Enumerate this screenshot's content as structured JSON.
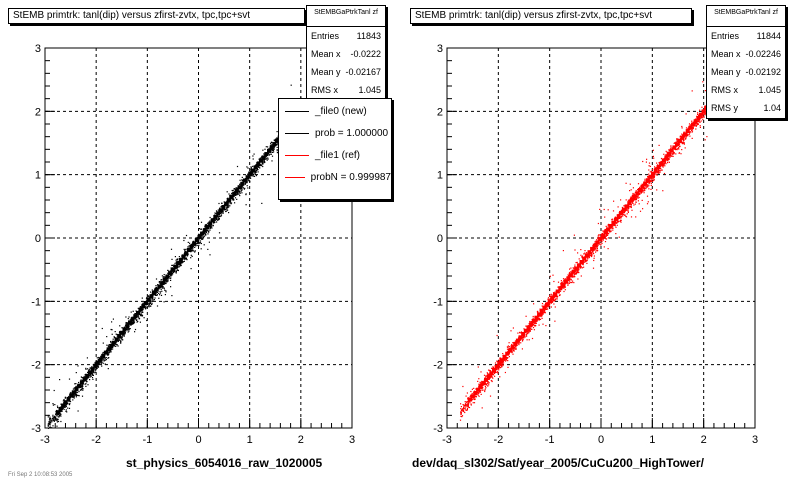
{
  "footnote": "Fri Sep 2 10:08:53 2005",
  "chart_data": [
    {
      "type": "scatter",
      "title": "StEMB primtrk: tanl(dip) versus zfirst-zvtx, tpc,tpc+svt",
      "xlabel": "st_physics_6054016_raw_1020005",
      "ylabel": "",
      "xlim": [
        -3,
        3
      ],
      "ylim": [
        -3,
        3
      ],
      "xticks": [
        "-3",
        "-2",
        "-1",
        "0",
        "1",
        "2",
        "3"
      ],
      "yticks": [
        "-3",
        "-2",
        "-1",
        "0",
        "1",
        "2",
        "3"
      ],
      "grid": true,
      "color": "#000000",
      "relation": {
        "slope": 1.0,
        "intercept": 0.0,
        "x_range": [
          -2.95,
          2.1
        ]
      },
      "stats": {
        "name": "StEMBGaPtrkTanl zf",
        "entries_label": "Entries",
        "entries": "11843",
        "meanx_label": "Mean x",
        "meanx": "-0.0222",
        "meany_label": "Mean y",
        "meany": "-0.02167",
        "rmsx_label": "RMS x",
        "rmsx": "1.045"
      },
      "legend": {
        "entries": [
          {
            "label": "_file0 (new)",
            "color": "#000000"
          },
          {
            "label": "prob = 1.000000",
            "color": "#000000"
          },
          {
            "label": "_file1 (ref)",
            "color": "#ff0000"
          },
          {
            "label": "probN = 0.999987",
            "color": "#ff0000"
          }
        ]
      }
    },
    {
      "type": "scatter",
      "title": "StEMB primtrk: tanl(dip) versus zfirst-zvtx, tpc,tpc+svt",
      "xlabel": "dev/daq_sl302/Sat/year_2005/CuCu200_HighTower/",
      "ylabel": "",
      "xlim": [
        -3,
        3
      ],
      "ylim": [
        -3,
        3
      ],
      "xticks": [
        "-3",
        "-2",
        "-1",
        "0",
        "1",
        "2",
        "3"
      ],
      "yticks": [
        "-3",
        "-2",
        "-1",
        "0",
        "1",
        "2",
        "3"
      ],
      "grid": true,
      "color": "#ff0000",
      "relation": {
        "slope": 1.0,
        "intercept": 0.0,
        "x_range": [
          -2.75,
          2.25
        ]
      },
      "stats": {
        "name": "StEMBGaPtrkTanl zf",
        "entries_label": "Entries",
        "entries": "11844",
        "meanx_label": "Mean x",
        "meanx": "-0.02246",
        "meany_label": "Mean y",
        "meany": "-0.02192",
        "rmsx_label": "RMS x",
        "rmsx": "1.045",
        "rmsy_label": "RMS y",
        "rmsy": "1.04"
      }
    }
  ]
}
